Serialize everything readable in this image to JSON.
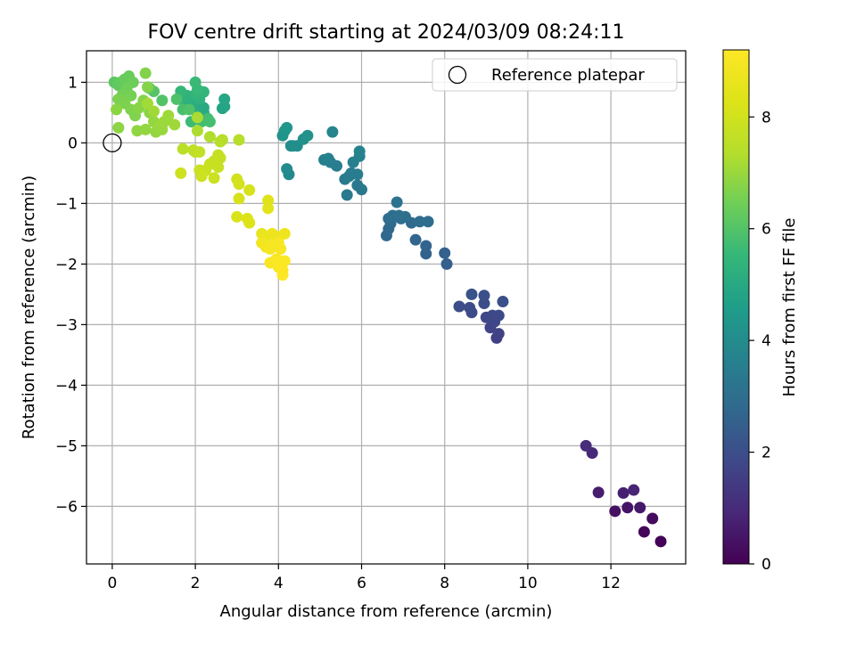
{
  "chart_data": {
    "type": "scatter",
    "title": "FOV centre drift starting at 2024/03/09 08:24:11",
    "xlabel": "Angular distance from reference (arcmin)",
    "ylabel": "Rotation from reference (arcmin)",
    "xlim": [
      -0.62,
      13.8
    ],
    "ylim": [
      -6.95,
      1.52
    ],
    "xticks": [
      0,
      2,
      4,
      6,
      8,
      10,
      12
    ],
    "yticks": [
      1,
      0,
      -1,
      -2,
      -3,
      -4,
      -5,
      -6
    ],
    "grid": true,
    "colormap": "viridis",
    "colorbar": {
      "label": "Hours from first FF file",
      "range": [
        0,
        9.2
      ],
      "ticks": [
        0,
        2,
        4,
        6,
        8
      ]
    },
    "legend": {
      "placement": "top-right",
      "entries": [
        "Reference platepar"
      ]
    },
    "reference_point": {
      "x": 0,
      "y": 0
    },
    "points": [
      [
        13.2,
        -6.58,
        0.05
      ],
      [
        12.8,
        -6.42,
        0.15
      ],
      [
        13.0,
        -6.2,
        0.25
      ],
      [
        12.1,
        -6.08,
        0.35
      ],
      [
        12.4,
        -6.02,
        0.45
      ],
      [
        12.7,
        -6.02,
        0.55
      ],
      [
        11.7,
        -5.77,
        0.65
      ],
      [
        12.3,
        -5.78,
        0.75
      ],
      [
        12.55,
        -5.73,
        0.85
      ],
      [
        11.55,
        -5.12,
        0.95
      ],
      [
        11.4,
        -5.0,
        1.05
      ],
      [
        9.25,
        -3.22,
        1.6
      ],
      [
        9.3,
        -3.15,
        1.65
      ],
      [
        9.1,
        -3.05,
        1.7
      ],
      [
        9.2,
        -2.95,
        1.75
      ],
      [
        9.0,
        -2.88,
        1.8
      ],
      [
        9.15,
        -2.85,
        1.82
      ],
      [
        9.3,
        -2.85,
        1.85
      ],
      [
        8.65,
        -2.8,
        1.9
      ],
      [
        8.6,
        -2.72,
        1.92
      ],
      [
        8.35,
        -2.7,
        1.95
      ],
      [
        8.95,
        -2.65,
        2.0
      ],
      [
        9.4,
        -2.62,
        2.02
      ],
      [
        8.95,
        -2.52,
        2.05
      ],
      [
        8.65,
        -2.5,
        2.1
      ],
      [
        8.05,
        -2.0,
        2.5
      ],
      [
        8.0,
        -1.82,
        2.55
      ],
      [
        7.55,
        -1.83,
        2.6
      ],
      [
        7.55,
        -1.7,
        2.65
      ],
      [
        7.3,
        -1.6,
        2.7
      ],
      [
        6.6,
        -1.53,
        2.75
      ],
      [
        6.65,
        -1.42,
        2.8
      ],
      [
        6.7,
        -1.33,
        2.85
      ],
      [
        7.2,
        -1.32,
        2.88
      ],
      [
        7.4,
        -1.3,
        2.9
      ],
      [
        7.6,
        -1.3,
        2.92
      ],
      [
        6.65,
        -1.25,
        2.95
      ],
      [
        6.95,
        -1.25,
        2.98
      ],
      [
        7.05,
        -1.22,
        3.0
      ],
      [
        6.75,
        -1.2,
        3.02
      ],
      [
        6.9,
        -1.2,
        3.05
      ],
      [
        6.85,
        -0.98,
        3.1
      ],
      [
        6.0,
        -0.77,
        3.3
      ],
      [
        5.9,
        -0.7,
        3.33
      ],
      [
        5.65,
        -0.86,
        3.36
      ],
      [
        5.6,
        -0.6,
        3.4
      ],
      [
        5.7,
        -0.55,
        3.42
      ],
      [
        5.75,
        -0.5,
        3.45
      ],
      [
        5.9,
        -0.52,
        3.48
      ],
      [
        5.4,
        -0.38,
        3.5
      ],
      [
        5.25,
        -0.32,
        3.55
      ],
      [
        5.1,
        -0.28,
        3.58
      ],
      [
        5.2,
        -0.26,
        3.6
      ],
      [
        5.8,
        -0.32,
        3.62
      ],
      [
        5.95,
        -0.22,
        3.65
      ],
      [
        5.95,
        -0.14,
        3.7
      ],
      [
        5.3,
        0.18,
        3.75
      ],
      [
        4.25,
        -0.52,
        3.9
      ],
      [
        4.2,
        -0.43,
        3.95
      ],
      [
        4.3,
        -0.05,
        4.0
      ],
      [
        4.45,
        -0.05,
        4.05
      ],
      [
        4.35,
        -0.05,
        4.1
      ],
      [
        4.6,
        0.06,
        4.15
      ],
      [
        4.7,
        0.12,
        4.2
      ],
      [
        4.1,
        0.12,
        4.25
      ],
      [
        4.15,
        0.2,
        4.3
      ],
      [
        4.2,
        0.25,
        4.35
      ],
      [
        2.7,
        0.6,
        4.8
      ],
      [
        2.65,
        0.57,
        4.85
      ],
      [
        2.7,
        0.72,
        4.9
      ],
      [
        2.2,
        0.5,
        4.95
      ],
      [
        2.2,
        0.58,
        5.0
      ],
      [
        2.05,
        0.45,
        5.05
      ],
      [
        1.95,
        0.6,
        5.1
      ],
      [
        1.8,
        0.62,
        5.15
      ],
      [
        1.9,
        0.68,
        5.2
      ],
      [
        2.1,
        0.72,
        5.25
      ],
      [
        1.65,
        0.72,
        5.3
      ],
      [
        1.8,
        0.78,
        5.35
      ],
      [
        2.0,
        0.8,
        5.4
      ],
      [
        2.2,
        0.84,
        5.45
      ],
      [
        1.65,
        0.85,
        5.5
      ],
      [
        2.05,
        0.88,
        5.55
      ],
      [
        2.0,
        1.0,
        5.6
      ],
      [
        1.9,
        0.35,
        5.65
      ],
      [
        2.15,
        0.35,
        5.7
      ],
      [
        2.3,
        0.4,
        5.75
      ],
      [
        2.35,
        0.35,
        5.8
      ],
      [
        1.7,
        0.55,
        5.85
      ],
      [
        1.55,
        0.72,
        5.9
      ],
      [
        1.85,
        0.55,
        5.95
      ],
      [
        1.2,
        0.7,
        6.0
      ],
      [
        1.0,
        0.85,
        6.05
      ],
      [
        0.9,
        0.9,
        6.1
      ],
      [
        0.05,
        1.0,
        6.15
      ],
      [
        0.15,
        0.95,
        6.2
      ],
      [
        0.2,
        1.0,
        6.25
      ],
      [
        0.3,
        1.05,
        6.3
      ],
      [
        0.4,
        1.1,
        6.35
      ],
      [
        0.5,
        1.0,
        6.4
      ],
      [
        0.35,
        0.9,
        6.45
      ],
      [
        0.25,
        0.8,
        6.5
      ],
      [
        0.45,
        0.78,
        6.55
      ],
      [
        0.15,
        0.72,
        6.6
      ],
      [
        0.3,
        0.65,
        6.62
      ],
      [
        0.45,
        0.55,
        6.65
      ],
      [
        0.55,
        0.45,
        6.68
      ],
      [
        0.8,
        1.15,
        6.7
      ],
      [
        0.85,
        0.92,
        6.72
      ],
      [
        0.75,
        0.7,
        6.75
      ],
      [
        0.65,
        0.58,
        6.78
      ],
      [
        0.9,
        0.5,
        6.8
      ],
      [
        0.1,
        0.55,
        6.82
      ],
      [
        0.15,
        0.25,
        6.85
      ],
      [
        0.6,
        0.2,
        6.88
      ],
      [
        0.8,
        0.22,
        6.9
      ],
      [
        1.0,
        0.35,
        6.92
      ],
      [
        1.05,
        0.18,
        6.95
      ],
      [
        1.2,
        0.22,
        6.98
      ],
      [
        1.15,
        0.3,
        7.0
      ],
      [
        1.25,
        0.35,
        7.02
      ],
      [
        1.35,
        0.45,
        7.05
      ],
      [
        1.5,
        0.3,
        7.08
      ],
      [
        1.0,
        0.52,
        7.1
      ],
      [
        0.85,
        0.65,
        7.12
      ],
      [
        2.05,
        0.42,
        7.2
      ],
      [
        2.05,
        0.2,
        7.25
      ],
      [
        2.35,
        0.1,
        7.3
      ],
      [
        2.65,
        0.05,
        7.35
      ],
      [
        3.05,
        0.05,
        7.4
      ],
      [
        2.6,
        0.02,
        7.45
      ],
      [
        1.7,
        -0.1,
        7.5
      ],
      [
        1.95,
        -0.12,
        7.55
      ],
      [
        2.0,
        -0.15,
        7.6
      ],
      [
        2.1,
        -0.15,
        7.65
      ],
      [
        2.55,
        -0.2,
        7.7
      ],
      [
        2.6,
        -0.25,
        7.72
      ],
      [
        2.45,
        -0.3,
        7.75
      ],
      [
        2.35,
        -0.35,
        7.78
      ],
      [
        2.55,
        -0.4,
        7.8
      ],
      [
        2.1,
        -0.45,
        7.82
      ],
      [
        2.25,
        -0.45,
        7.85
      ],
      [
        2.15,
        -0.55,
        7.88
      ],
      [
        2.45,
        -0.58,
        7.9
      ],
      [
        1.65,
        -0.5,
        7.92
      ],
      [
        3.0,
        -0.6,
        8.0
      ],
      [
        3.05,
        -0.68,
        8.05
      ],
      [
        3.3,
        -0.78,
        8.1
      ],
      [
        3.05,
        -0.92,
        8.15
      ],
      [
        3.0,
        -1.22,
        8.2
      ],
      [
        3.25,
        -1.25,
        8.25
      ],
      [
        3.3,
        -1.32,
        8.3
      ],
      [
        3.75,
        -0.95,
        8.35
      ],
      [
        3.75,
        -1.08,
        8.4
      ],
      [
        3.6,
        -1.5,
        8.6
      ],
      [
        3.7,
        -1.55,
        8.65
      ],
      [
        3.85,
        -1.5,
        8.7
      ],
      [
        4.0,
        -1.55,
        8.75
      ],
      [
        4.15,
        -1.5,
        8.8
      ],
      [
        3.6,
        -1.65,
        8.85
      ],
      [
        3.7,
        -1.72,
        8.9
      ],
      [
        3.8,
        -1.75,
        8.95
      ],
      [
        3.9,
        -1.68,
        9.0
      ],
      [
        4.0,
        -1.65,
        9.02
      ],
      [
        4.05,
        -1.75,
        9.05
      ],
      [
        3.8,
        -1.98,
        9.08
      ],
      [
        3.95,
        -1.92,
        9.1
      ],
      [
        4.05,
        -1.95,
        9.12
      ],
      [
        4.15,
        -1.95,
        9.14
      ],
      [
        4.0,
        -2.05,
        9.16
      ],
      [
        4.1,
        -2.1,
        9.18
      ],
      [
        4.1,
        -2.18,
        9.2
      ]
    ]
  }
}
